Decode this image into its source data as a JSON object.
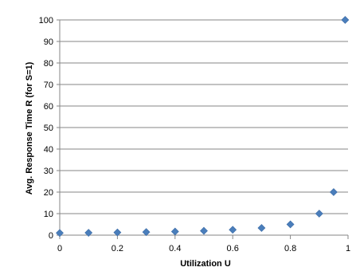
{
  "chart_data": {
    "type": "scatter",
    "title": "",
    "xlabel": "Utilization U",
    "ylabel": "Avg. Response Time R (for S=1)",
    "xlim": [
      0,
      1
    ],
    "ylim": [
      0,
      100
    ],
    "xticks": [
      "0",
      "0.2",
      "0.4",
      "0.6",
      "0.8",
      "1"
    ],
    "yticks": [
      "0",
      "10",
      "20",
      "30",
      "40",
      "50",
      "60",
      "70",
      "80",
      "90",
      "100"
    ],
    "grid": "horizontal",
    "legend": "none",
    "marker": "diamond",
    "marker_color": "#4a7ebb",
    "x": [
      0,
      0.1,
      0.2,
      0.3,
      0.4,
      0.5,
      0.6,
      0.7,
      0.8,
      0.9,
      0.95,
      0.99
    ],
    "y": [
      1,
      1.1,
      1.25,
      1.43,
      1.67,
      2,
      2.5,
      3.33,
      5,
      10,
      20,
      100
    ]
  }
}
